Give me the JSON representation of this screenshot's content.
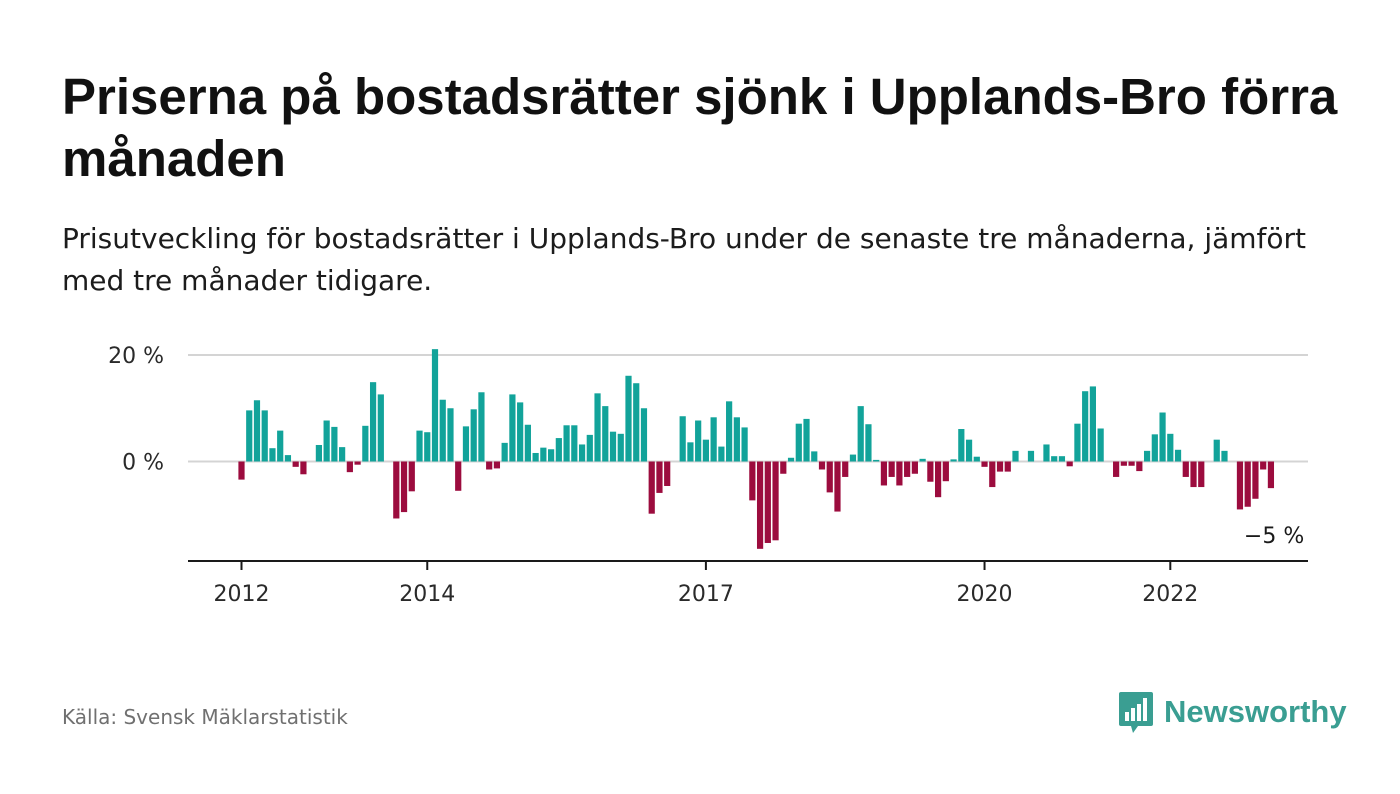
{
  "header": {
    "title": "Priserna på bostadsrätter sjönk i Upplands-Bro förra månaden",
    "subtitle": "Prisutveckling för bostadsrätter i Upplands-Bro under de senaste tre månaderna, jämfört med tre månader tidigare."
  },
  "footer": {
    "source": "Källa: Svensk Mäklarstatistik",
    "brand": "Newsworthy",
    "brand_icon": "bar-chart-speech-bubble-icon"
  },
  "colors": {
    "positive": "#12a39a",
    "negative": "#9c0c3e",
    "grid": "#d4d4d4",
    "axis": "#1a1a1a",
    "brand": "#3a9e92"
  },
  "chart_data": {
    "type": "bar",
    "x_start": "2012-01",
    "x_end": "2023-04",
    "x_ticks": [
      {
        "value": "2012-01",
        "label": "2012"
      },
      {
        "value": "2014-01",
        "label": "2014"
      },
      {
        "value": "2017-01",
        "label": "2017"
      },
      {
        "value": "2020-01",
        "label": "2020"
      },
      {
        "value": "2022-01",
        "label": "2022"
      }
    ],
    "y_ticks": [
      {
        "value": 0,
        "label": "0 %"
      },
      {
        "value": 20,
        "label": "20 %"
      }
    ],
    "ylim": [
      -19,
      20
    ],
    "grid": true,
    "series": [
      {
        "start": "2012-01",
        "frequency": "monthly",
        "values": [
          -3.4,
          9.6,
          11.5,
          9.6,
          2.5,
          5.8,
          1.2,
          -1.0,
          -2.4,
          0,
          3.1,
          7.7,
          6.5,
          2.7,
          -2.0,
          -0.6,
          6.7,
          14.9,
          12.6,
          0,
          -10.7,
          -9.5,
          -5.6,
          5.8,
          5.5,
          21.1,
          11.6,
          10.0,
          -5.5,
          6.6,
          9.8,
          13.0,
          -1.5,
          -1.3,
          3.5,
          12.6,
          11.1,
          6.9,
          1.6,
          2.6,
          2.3,
          4.4,
          6.8,
          6.8,
          3.2,
          5.0,
          12.8,
          10.4,
          5.6,
          5.2,
          16.1,
          14.7,
          10.0,
          -9.8,
          -5.9,
          -4.6,
          0,
          8.5,
          3.6,
          7.7,
          4.1,
          8.3,
          2.8,
          11.3,
          8.3,
          6.4,
          -7.3,
          -16.4,
          -15.3,
          -14.8,
          -2.3,
          0.7,
          7.1,
          8.0,
          1.9,
          -1.5,
          -5.8,
          -9.4,
          -2.9,
          1.3,
          10.4,
          7.0,
          0.3,
          -4.5,
          -2.9,
          -4.5,
          -2.9,
          -2.3,
          0.5,
          -3.8,
          -6.7,
          -3.7,
          0.4,
          6.1,
          4.1,
          0.9,
          -1.0,
          -4.8,
          -1.9,
          -1.9,
          2.0,
          0,
          2.0,
          0,
          3.2,
          1.0,
          1.0,
          -0.9,
          7.1,
          13.2,
          14.1,
          6.2,
          0,
          -2.9,
          -0.8,
          -0.8,
          -1.8,
          2.0,
          5.1,
          9.2,
          5.2,
          2.2,
          -2.9,
          -4.8,
          -4.8,
          0,
          4.1,
          2.0,
          0,
          -9.0,
          -8.5,
          -7.0,
          -1.5,
          -5.0
        ]
      }
    ],
    "last_value_label": "−5 %"
  }
}
